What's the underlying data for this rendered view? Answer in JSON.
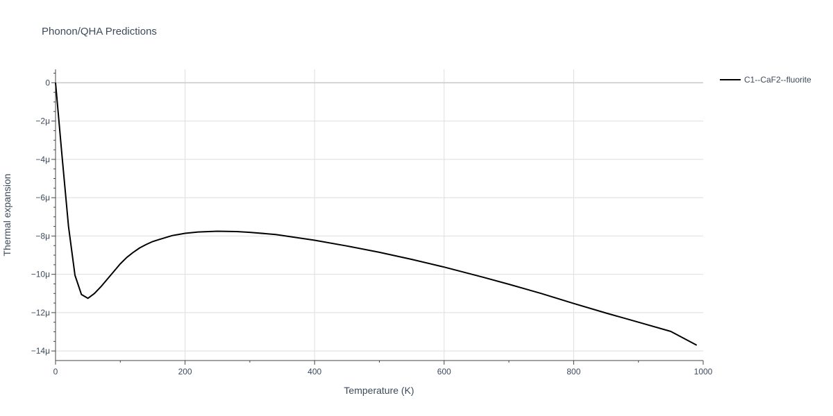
{
  "chart_data": {
    "type": "line",
    "title": "Phonon/QHA Predictions",
    "xlabel": "Temperature (K)",
    "ylabel": "Thermal expansion",
    "xlim": [
      0,
      1000
    ],
    "ylim": [
      -14.5,
      0.7
    ],
    "x_ticks": [
      0,
      200,
      400,
      600,
      800,
      1000
    ],
    "x_tick_labels": [
      "0",
      "200",
      "400",
      "600",
      "800",
      "1000"
    ],
    "y_ticks": [
      0,
      -2,
      -4,
      -6,
      -8,
      -10,
      -12,
      -14
    ],
    "y_tick_labels": [
      "0",
      "−2μ",
      "−4μ",
      "−6μ",
      "−8μ",
      "−10μ",
      "−12μ",
      "−14μ"
    ],
    "grid": true,
    "legend_position": "top-right",
    "series": [
      {
        "name": "C1--CaF2--fluorite",
        "color": "#000000",
        "x": [
          0,
          10,
          20,
          30,
          40,
          50,
          60,
          70,
          80,
          90,
          100,
          110,
          120,
          130,
          140,
          150,
          160,
          180,
          200,
          220,
          250,
          280,
          300,
          340,
          400,
          450,
          500,
          550,
          600,
          660,
          700,
          750,
          800,
          850,
          900,
          950,
          990
        ],
        "y": [
          0,
          -3.8,
          -7.5,
          -10.05,
          -11.05,
          -11.25,
          -11.0,
          -10.65,
          -10.25,
          -9.85,
          -9.45,
          -9.12,
          -8.85,
          -8.62,
          -8.44,
          -8.29,
          -8.18,
          -7.98,
          -7.86,
          -7.79,
          -7.75,
          -7.77,
          -7.81,
          -7.92,
          -8.22,
          -8.52,
          -8.85,
          -9.22,
          -9.62,
          -10.15,
          -10.52,
          -11.0,
          -11.52,
          -12.02,
          -12.5,
          -12.98,
          -13.7
        ]
      }
    ]
  }
}
